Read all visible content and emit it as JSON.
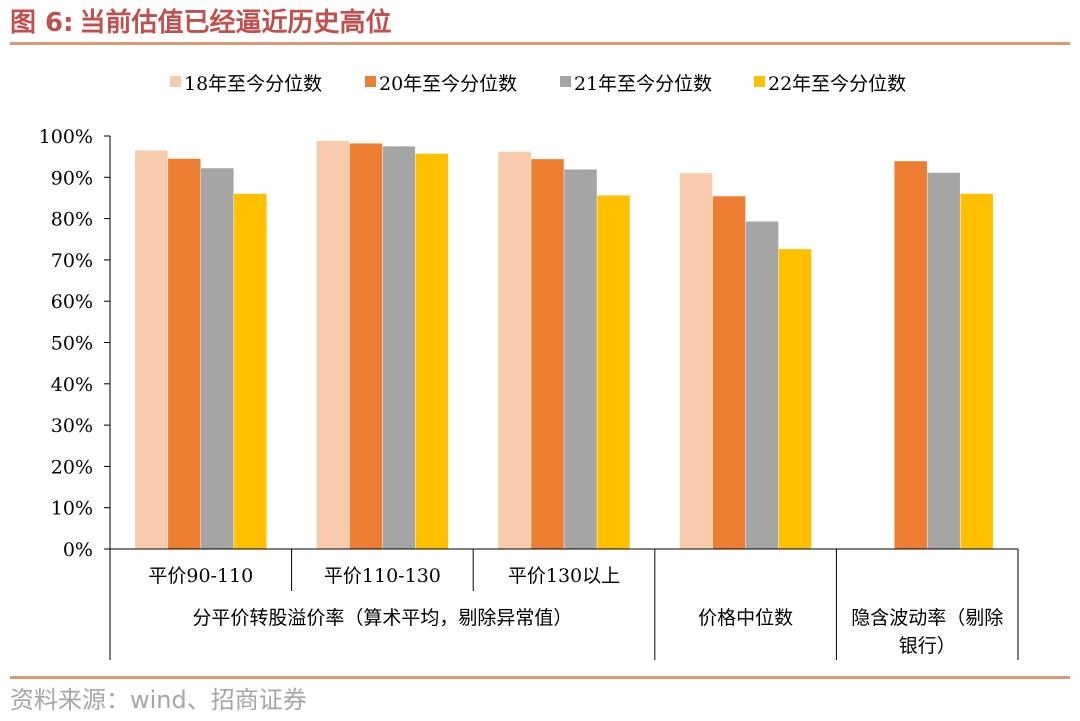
{
  "figure": {
    "label": "图 6:",
    "title": "当前估值已经逼近历史高位"
  },
  "source": "资料来源：wind、招商证券",
  "colors": {
    "accent": "#c0504d",
    "rule": "#d99a78",
    "source_text": "#a6a6a6"
  },
  "chart_data": {
    "type": "bar",
    "title": "",
    "xlabel": "",
    "ylabel": "",
    "ylim": [
      0,
      100
    ],
    "yticks": [
      "0%",
      "10%",
      "20%",
      "30%",
      "40%",
      "50%",
      "60%",
      "70%",
      "80%",
      "90%",
      "100%"
    ],
    "legend_position": "top",
    "categories": [
      "平价90-110",
      "平价110-130",
      "平价130以上",
      "价格中位数",
      "隐含波动率（剔除银行）"
    ],
    "category_labels": [
      [
        "平价90-110"
      ],
      [
        "平价110-130"
      ],
      [
        "平价130以上"
      ],
      [
        "价格中位数"
      ],
      [
        "隐含波动率（剔除",
        "银行）"
      ]
    ],
    "groups": [
      {
        "label": "分平价转股溢价率（算术平均，剔除异常值）",
        "span": [
          0,
          2
        ]
      }
    ],
    "series": [
      {
        "name": "18年至今分位数",
        "color": "#f8cbad",
        "values": [
          96.5,
          98.8,
          96.2,
          91.0,
          null
        ]
      },
      {
        "name": "20年至今分位数",
        "color": "#ed7d31",
        "values": [
          94.5,
          98.2,
          94.4,
          85.4,
          93.9
        ]
      },
      {
        "name": "21年至今分位数",
        "color": "#a5a5a5",
        "values": [
          92.2,
          97.5,
          91.9,
          79.3,
          91.1
        ]
      },
      {
        "name": "22年至今分位数",
        "color": "#ffc000",
        "values": [
          86.0,
          95.7,
          85.6,
          72.6,
          86.0
        ]
      }
    ]
  }
}
